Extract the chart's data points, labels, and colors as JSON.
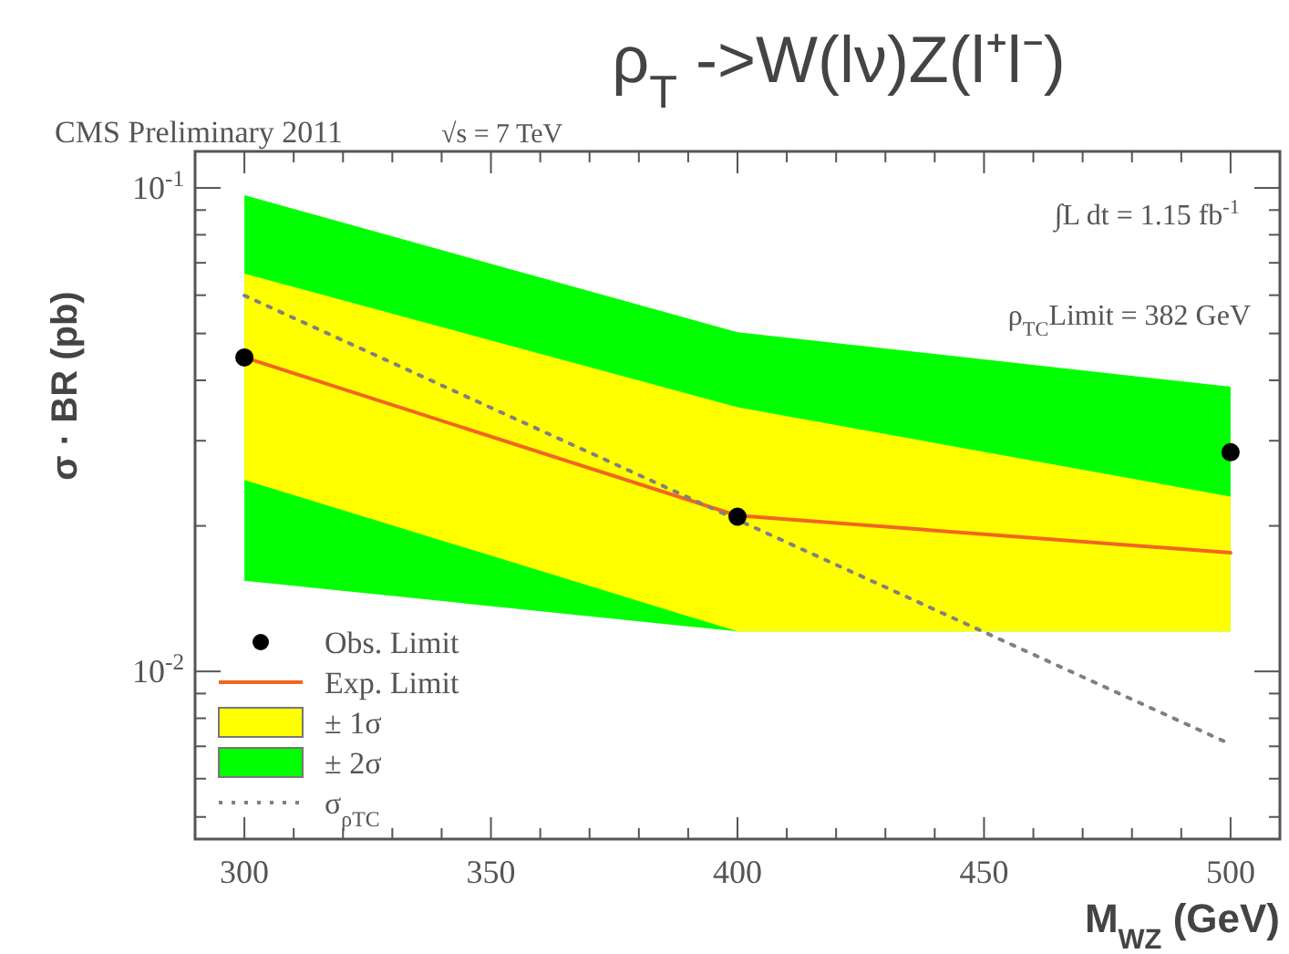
{
  "chart_data": {
    "type": "line",
    "title": "ρ$_{T}$ ->W(lν)Z(l⁺l⁻)",
    "xlabel": "M$_{WZ}$ (GeV)",
    "ylabel": "σ · BR (pb)",
    "annotations": [
      "CMS Preliminary 2011",
      "√s = 7 TeV",
      "∫L dt = 1.15 fb$^{-1}$",
      "ρ$_{TC}$Limit = 382 GeV"
    ],
    "x": [
      300,
      400,
      500
    ],
    "series": [
      {
        "name": "Obs. Limit",
        "type": "scatter",
        "marker": "circle",
        "color": "#000000",
        "values": [
          0.0446,
          0.0209,
          0.0284
        ]
      },
      {
        "name": "Exp. Limit",
        "type": "line",
        "color": "#f26522",
        "values": [
          0.0446,
          0.021,
          0.0176
        ]
      },
      {
        "name": "± 1σ",
        "type": "line",
        "color": "#ffff00",
        "values": [
          null,
          null,
          null
        ],
        "lower": [
          0.0249,
          0.0121,
          0.0121
        ],
        "upper": [
          0.0665,
          0.0352,
          0.023
        ]
      },
      {
        "name": "± 2σ",
        "type": "line",
        "color": "#00ff00",
        "values": [
          null,
          null,
          null
        ],
        "lower": [
          0.0154,
          0.0121,
          0.0121
        ],
        "upper": [
          0.0966,
          0.0503,
          0.0388
        ]
      },
      {
        "name": "σ$_{ρTC}$",
        "type": "line",
        "line_style": "dotted",
        "color": "#808080",
        "x": [
          300,
          500
        ],
        "values": [
          0.0599,
          0.00707
        ]
      }
    ],
    "log": "y",
    "xlim": [
      290,
      510
    ],
    "ylim": [
      0.0045,
      0.119
    ],
    "xticks": [
      300,
      {
        "value": 310,
        "label": null
      },
      {
        "value": 320,
        "label": null
      },
      {
        "value": 330,
        "label": null
      },
      {
        "value": 340,
        "label": null
      },
      350,
      {
        "value": 360,
        "label": null
      },
      {
        "value": 370,
        "label": null
      },
      {
        "value": 380,
        "label": null
      },
      {
        "value": 390,
        "label": null
      },
      400,
      {
        "value": 410,
        "label": null
      },
      {
        "value": 420,
        "label": null
      },
      {
        "value": 430,
        "label": null
      },
      {
        "value": 440,
        "label": null
      },
      450,
      {
        "value": 460,
        "label": null
      },
      {
        "value": 470,
        "label": null
      },
      {
        "value": 480,
        "label": null
      },
      {
        "value": 490,
        "label": null
      },
      500
    ],
    "yticks": [
      {
        "value": 0.005,
        "label": null
      },
      {
        "value": 0.006,
        "label": null
      },
      {
        "value": 0.007,
        "label": null
      },
      {
        "value": 0.008,
        "label": null
      },
      {
        "value": 0.009,
        "label": null
      },
      {
        "value": 0.01,
        "label": "10$^{-2}$"
      },
      {
        "value": 0.02,
        "label": null
      },
      {
        "value": 0.03,
        "label": null
      },
      {
        "value": 0.04,
        "label": null
      },
      {
        "value": 0.05,
        "label": null
      },
      {
        "value": 0.06,
        "label": null
      },
      {
        "value": 0.07,
        "label": null
      },
      {
        "value": 0.08,
        "label": null
      },
      {
        "value": 0.09,
        "label": null
      },
      {
        "value": 0.1,
        "label": "10$^{-1}$"
      }
    ],
    "grid": false,
    "legend": "bottom left"
  }
}
